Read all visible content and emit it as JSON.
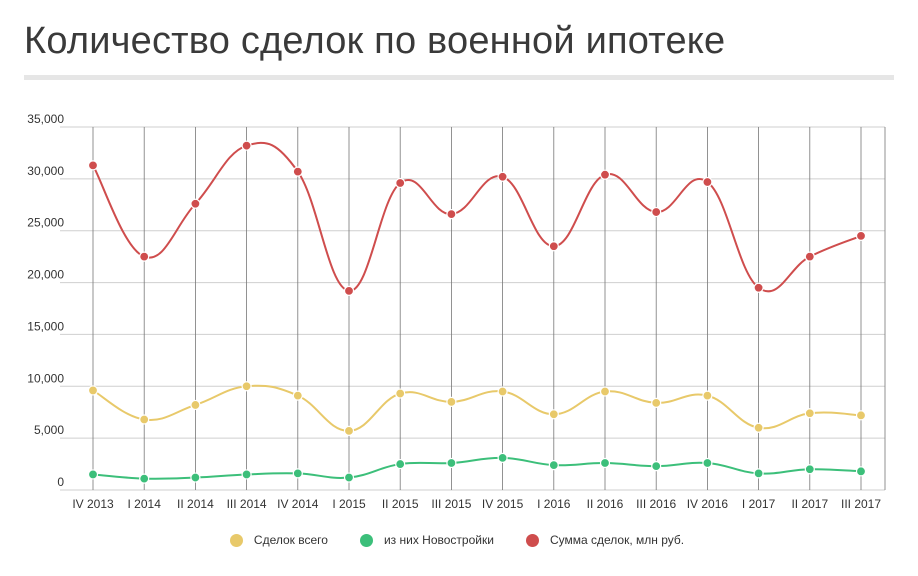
{
  "title": "Количество сделок по военной ипотеке",
  "colors": {
    "series_0": "#e8c96a",
    "series_1": "#3cbf7a",
    "series_2": "#cf4d4d",
    "grid": "#cfcfcf",
    "vgrid": "#777777",
    "title_rule": "#e6e6e6"
  },
  "chart_data": {
    "type": "line",
    "title": "Количество сделок по военной ипотеке",
    "xlabel": "",
    "ylabel": "",
    "ylim": [
      0,
      35000
    ],
    "yticks": [
      "35,000",
      "30,000",
      "25,000",
      "20,000",
      "15,000",
      "10,000",
      "5,000",
      "0"
    ],
    "ytick_values": [
      35000,
      30000,
      25000,
      20000,
      15000,
      10000,
      5000,
      0
    ],
    "categories": [
      "IV 2013",
      "I 2014",
      "II 2014",
      "III 2014",
      "IV 2014",
      "I 2015",
      "II 2015",
      "III 2015",
      "IV 2015",
      "I 2016",
      "II 2016",
      "III 2016",
      "IV 2016",
      "I 2017",
      "II 2017",
      "III 2017"
    ],
    "grid": true,
    "legend_position": "bottom",
    "series": [
      {
        "name": "Сделок всего",
        "values": [
          9600,
          6800,
          8200,
          10000,
          9100,
          5700,
          9300,
          8500,
          9500,
          7300,
          9500,
          8400,
          9100,
          6000,
          7400,
          7200
        ]
      },
      {
        "name": "из них Новостройки",
        "values": [
          1500,
          1100,
          1200,
          1500,
          1600,
          1200,
          2500,
          2600,
          3100,
          2400,
          2600,
          2300,
          2600,
          1600,
          2000,
          1800
        ]
      },
      {
        "name": "Сумма сделок, млн руб.",
        "values": [
          31300,
          22500,
          27600,
          33200,
          30700,
          19200,
          29600,
          26600,
          30200,
          23500,
          30400,
          26800,
          29700,
          19500,
          22500,
          24500
        ]
      }
    ]
  }
}
